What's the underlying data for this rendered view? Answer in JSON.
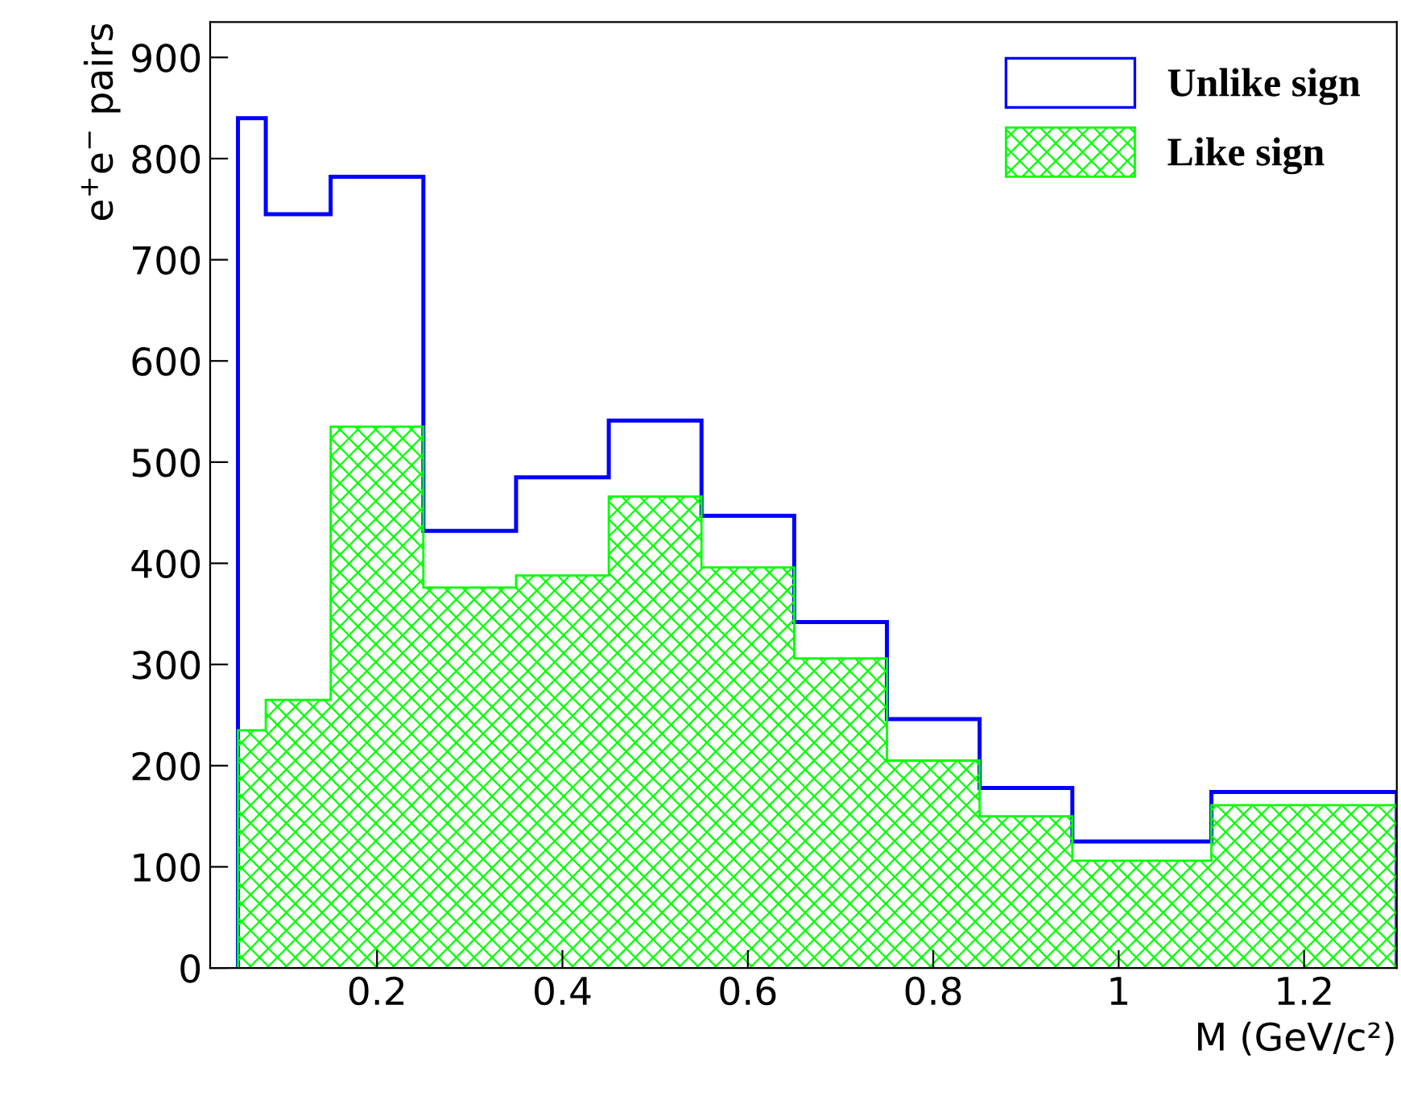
{
  "chart_data": {
    "type": "histogram",
    "xlabel": "M (GeV/c²)",
    "ylabel": "e$^{+}$e$^{−}$ pairs",
    "bins": [
      0.05,
      0.08,
      0.15,
      0.25,
      0.35,
      0.45,
      0.55,
      0.65,
      0.75,
      0.85,
      0.95,
      1.1,
      1.3
    ],
    "series": [
      {
        "name": "Unlike sign",
        "color": "#0000ff",
        "values": [
          840,
          745,
          782,
          432,
          485,
          541,
          447,
          342,
          246,
          178,
          125,
          174
        ]
      },
      {
        "name": "Like sign",
        "color": "#00ff00",
        "values": [
          235,
          265,
          535,
          376,
          388,
          466,
          396,
          306,
          205,
          150,
          106,
          161
        ]
      }
    ],
    "xlim": [
      0.02,
      1.3
    ],
    "ylim": [
      0,
      935
    ],
    "xticks": [
      0.2,
      0.4,
      0.6,
      0.8,
      1,
      1.2
    ],
    "yticks": [
      0,
      100,
      200,
      300,
      400,
      500,
      600,
      700,
      800,
      900
    ],
    "grid": false,
    "legend": "top right"
  }
}
